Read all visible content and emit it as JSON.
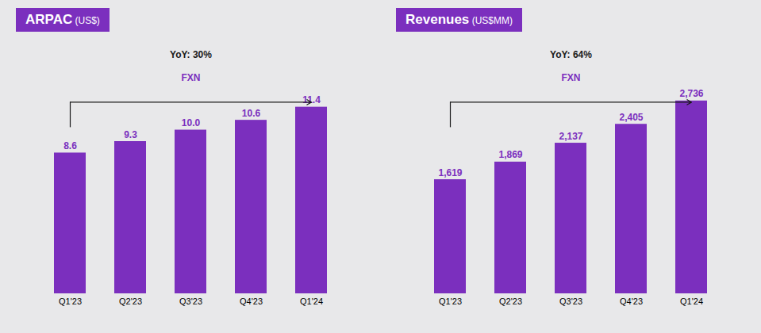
{
  "chart_data": [
    {
      "type": "bar",
      "title": "ARPAC",
      "subtitle": " (US$)",
      "categories": [
        "Q1'23",
        "Q2'23",
        "Q3'23",
        "Q4'23",
        "Q1'24"
      ],
      "values": [
        8.6,
        9.3,
        10.0,
        10.6,
        11.4
      ],
      "value_labels": [
        "8.6",
        "9.3",
        "10.0",
        "10.6",
        "11.4"
      ],
      "color": "#7B2FBE",
      "ylim": [
        0,
        15.5
      ],
      "data_labels": true,
      "tick_labels": "x",
      "annotations": [
        "YoY: 30%",
        "FXN"
      ]
    },
    {
      "type": "bar",
      "title": "Revenues",
      "subtitle": " (US$MM)",
      "categories": [
        "Q1'23",
        "Q2'23",
        "Q3'23",
        "Q4'23",
        "Q1'24"
      ],
      "values": [
        1619,
        1869,
        2137,
        2405,
        2736
      ],
      "value_labels": [
        "1,619",
        "1,869",
        "2,137",
        "2,405",
        "2,736"
      ],
      "color": "#7B2FBE",
      "ylim": [
        0,
        3600
      ],
      "data_labels": true,
      "tick_labels": "x",
      "annotations": [
        "YoY: 64%",
        "FXN"
      ]
    }
  ]
}
